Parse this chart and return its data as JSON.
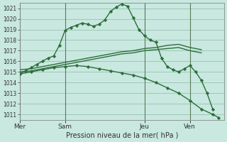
{
  "bg_color": "#c8e8e0",
  "grid_color": "#a0c8b8",
  "line_color": "#2d6e3a",
  "xlabel": "Pression niveau de la mer( hPa )",
  "ylim": [
    1010.5,
    1021.5
  ],
  "yticks": [
    1011,
    1012,
    1013,
    1014,
    1015,
    1016,
    1017,
    1018,
    1019,
    1020,
    1021
  ],
  "day_labels": [
    "Mer",
    "Sam",
    "Jeu",
    "Ven"
  ],
  "day_positions": [
    0,
    8,
    22,
    30
  ],
  "xlim": [
    0,
    36
  ],
  "lines": [
    {
      "x": [
        0,
        2,
        4,
        6,
        8,
        10,
        12,
        14,
        16,
        18,
        20,
        22,
        24,
        26,
        28,
        30,
        32
      ],
      "y": [
        1015.0,
        1015.1,
        1015.3,
        1015.5,
        1015.7,
        1015.9,
        1016.1,
        1016.3,
        1016.5,
        1016.7,
        1016.8,
        1017.0,
        1017.1,
        1017.2,
        1017.3,
        1017.0,
        1016.8
      ],
      "has_marker": false
    },
    {
      "x": [
        0,
        2,
        4,
        6,
        8,
        10,
        12,
        14,
        16,
        18,
        20,
        22,
        24,
        26,
        28,
        30,
        32
      ],
      "y": [
        1015.2,
        1015.3,
        1015.5,
        1015.7,
        1015.9,
        1016.1,
        1016.3,
        1016.5,
        1016.7,
        1016.9,
        1017.0,
        1017.2,
        1017.3,
        1017.5,
        1017.6,
        1017.3,
        1017.1
      ],
      "has_marker": false
    },
    {
      "x": [
        0,
        1,
        2,
        3,
        4,
        5,
        6,
        7,
        8,
        9,
        10,
        11,
        12,
        13,
        14,
        15,
        16,
        17,
        18,
        19,
        20,
        21,
        22,
        23,
        24,
        25,
        26,
        27,
        28,
        29,
        30,
        31,
        32,
        33,
        34
      ],
      "y": [
        1014.8,
        1015.1,
        1015.4,
        1015.7,
        1016.0,
        1016.3,
        1016.5,
        1017.5,
        1018.9,
        1019.2,
        1019.4,
        1019.6,
        1019.5,
        1019.3,
        1019.5,
        1019.9,
        1020.7,
        1021.1,
        1021.4,
        1021.2,
        1020.1,
        1019.0,
        1018.4,
        1018.0,
        1017.8,
        1016.3,
        1015.5,
        1015.2,
        1015.0,
        1015.3,
        1015.6,
        1015.0,
        1014.2,
        1013.0,
        1011.5
      ],
      "has_marker": true
    },
    {
      "x": [
        0,
        2,
        4,
        6,
        8,
        10,
        12,
        14,
        16,
        18,
        20,
        22,
        24,
        26,
        28,
        30,
        32,
        34,
        35
      ],
      "y": [
        1014.8,
        1015.0,
        1015.2,
        1015.4,
        1015.5,
        1015.6,
        1015.5,
        1015.3,
        1015.1,
        1014.9,
        1014.7,
        1014.4,
        1014.0,
        1013.5,
        1013.0,
        1012.3,
        1011.5,
        1011.0,
        1010.7
      ],
      "has_marker": true
    }
  ]
}
